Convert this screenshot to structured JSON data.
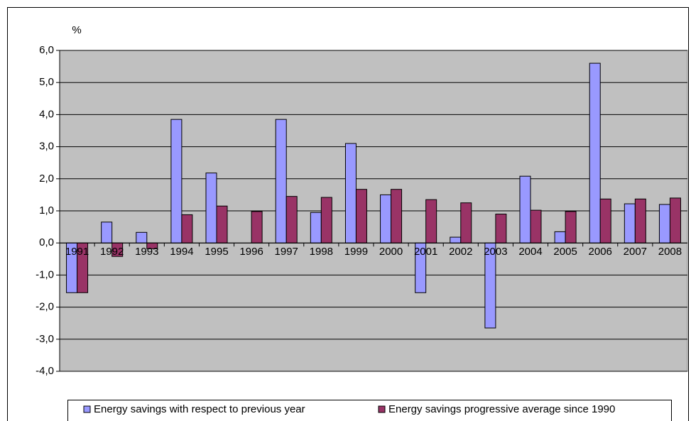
{
  "chart_data": {
    "type": "bar",
    "ylabel": "%",
    "categories": [
      "1991",
      "1992",
      "1993",
      "1994",
      "1995",
      "1996",
      "1997",
      "1998",
      "1999",
      "2000",
      "2001",
      "2002",
      "2003",
      "2004",
      "2005",
      "2006",
      "2007",
      "2008"
    ],
    "series": [
      {
        "name": "Energy savings with respect to previous year",
        "color": "#9999ff",
        "values": [
          -1.55,
          0.65,
          0.33,
          3.85,
          2.18,
          0,
          3.85,
          0.95,
          3.1,
          1.5,
          -1.55,
          0.18,
          -2.65,
          2.08,
          0.35,
          5.6,
          1.22,
          1.2
        ]
      },
      {
        "name": "Energy savings progressive average since 1990",
        "color": "#993366",
        "values": [
          -1.55,
          -0.42,
          -0.18,
          0.88,
          1.15,
          0.98,
          1.45,
          1.42,
          1.67,
          1.67,
          1.35,
          1.25,
          0.9,
          1.02,
          0.98,
          1.37,
          1.37,
          1.4
        ]
      }
    ],
    "ylim": [
      -4,
      6
    ],
    "yticks": [
      {
        "value": -4,
        "label": "-4,0"
      },
      {
        "value": -3,
        "label": "-3,0"
      },
      {
        "value": -2,
        "label": "-2,0"
      },
      {
        "value": -1,
        "label": "-1,0"
      },
      {
        "value": 0,
        "label": "0,0"
      },
      {
        "value": 1,
        "label": "1,0"
      },
      {
        "value": 2,
        "label": "2,0"
      },
      {
        "value": 3,
        "label": "3,0"
      },
      {
        "value": 4,
        "label": "4,0"
      },
      {
        "value": 5,
        "label": "5,0"
      },
      {
        "value": 6,
        "label": "6,0"
      }
    ],
    "grid": true,
    "legend": "bottom",
    "background": "#c0c0c0"
  }
}
